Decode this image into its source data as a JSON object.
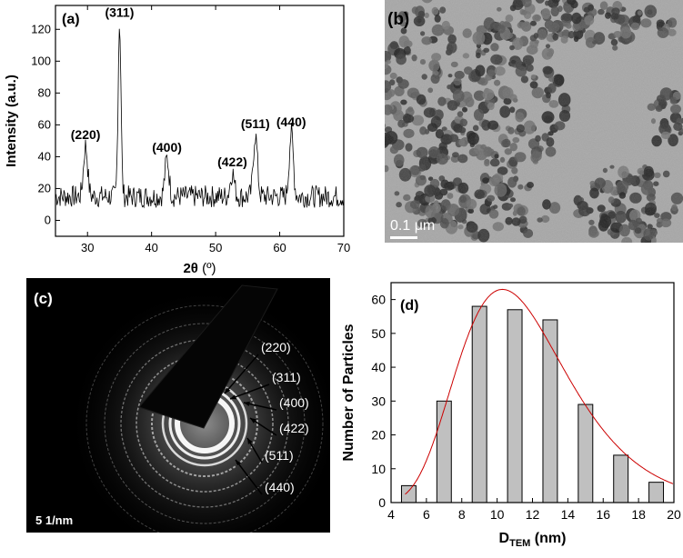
{
  "panels": {
    "a": {
      "letter": "(a)"
    },
    "b": {
      "letter": "(b)",
      "scale_bar_label": "0.1 μm"
    },
    "c": {
      "letter": "(c)",
      "scale_label": "5 1/nm",
      "ring_labels": [
        "(220)",
        "(311)",
        "(400)",
        "(422)",
        "(511)",
        "(440)"
      ]
    },
    "d": {
      "letter": "(d)"
    }
  },
  "chart_data": [
    {
      "type": "line",
      "panel": "a",
      "title": "",
      "xlabel": "2θ (º)",
      "ylabel": "Intensity (a.u.)",
      "xlim": [
        25,
        70
      ],
      "ylim": [
        -10,
        135
      ],
      "xticks": [
        30,
        40,
        50,
        60,
        70
      ],
      "yticks": [
        0,
        20,
        40,
        60,
        80,
        100,
        120
      ],
      "background": 15,
      "peaks": [
        {
          "label": "(220)",
          "x": 29.7,
          "y": 47
        },
        {
          "label": "(311)",
          "x": 35.0,
          "y": 124
        },
        {
          "label": "(400)",
          "x": 42.4,
          "y": 39
        },
        {
          "label": "(422)",
          "x": 52.6,
          "y": 30
        },
        {
          "label": "(511)",
          "x": 56.2,
          "y": 54
        },
        {
          "label": "(440)",
          "x": 61.8,
          "y": 55
        }
      ],
      "line_color": "#000000"
    },
    {
      "type": "bar",
      "panel": "d",
      "title": "",
      "xlabel": "D_TEM (nm)",
      "xlabel_main": "D",
      "xlabel_sub": "TEM",
      "xlabel_unit": " (nm)",
      "ylabel": "Number of Particles",
      "xlim": [
        4,
        20
      ],
      "ylim": [
        0,
        65
      ],
      "xticks": [
        4,
        6,
        8,
        10,
        12,
        14,
        16,
        18,
        20
      ],
      "yticks": [
        0,
        10,
        20,
        30,
        40,
        50,
        60
      ],
      "x": [
        5,
        7,
        9,
        11,
        13,
        15,
        17,
        19
      ],
      "values": [
        5,
        30,
        58,
        57,
        54,
        29,
        14,
        6
      ],
      "fit": {
        "type": "lognormal",
        "peak_x": 10.3,
        "peak_y": 63,
        "color": "#cc0000"
      },
      "bar_color": "#c0c0c0"
    }
  ]
}
